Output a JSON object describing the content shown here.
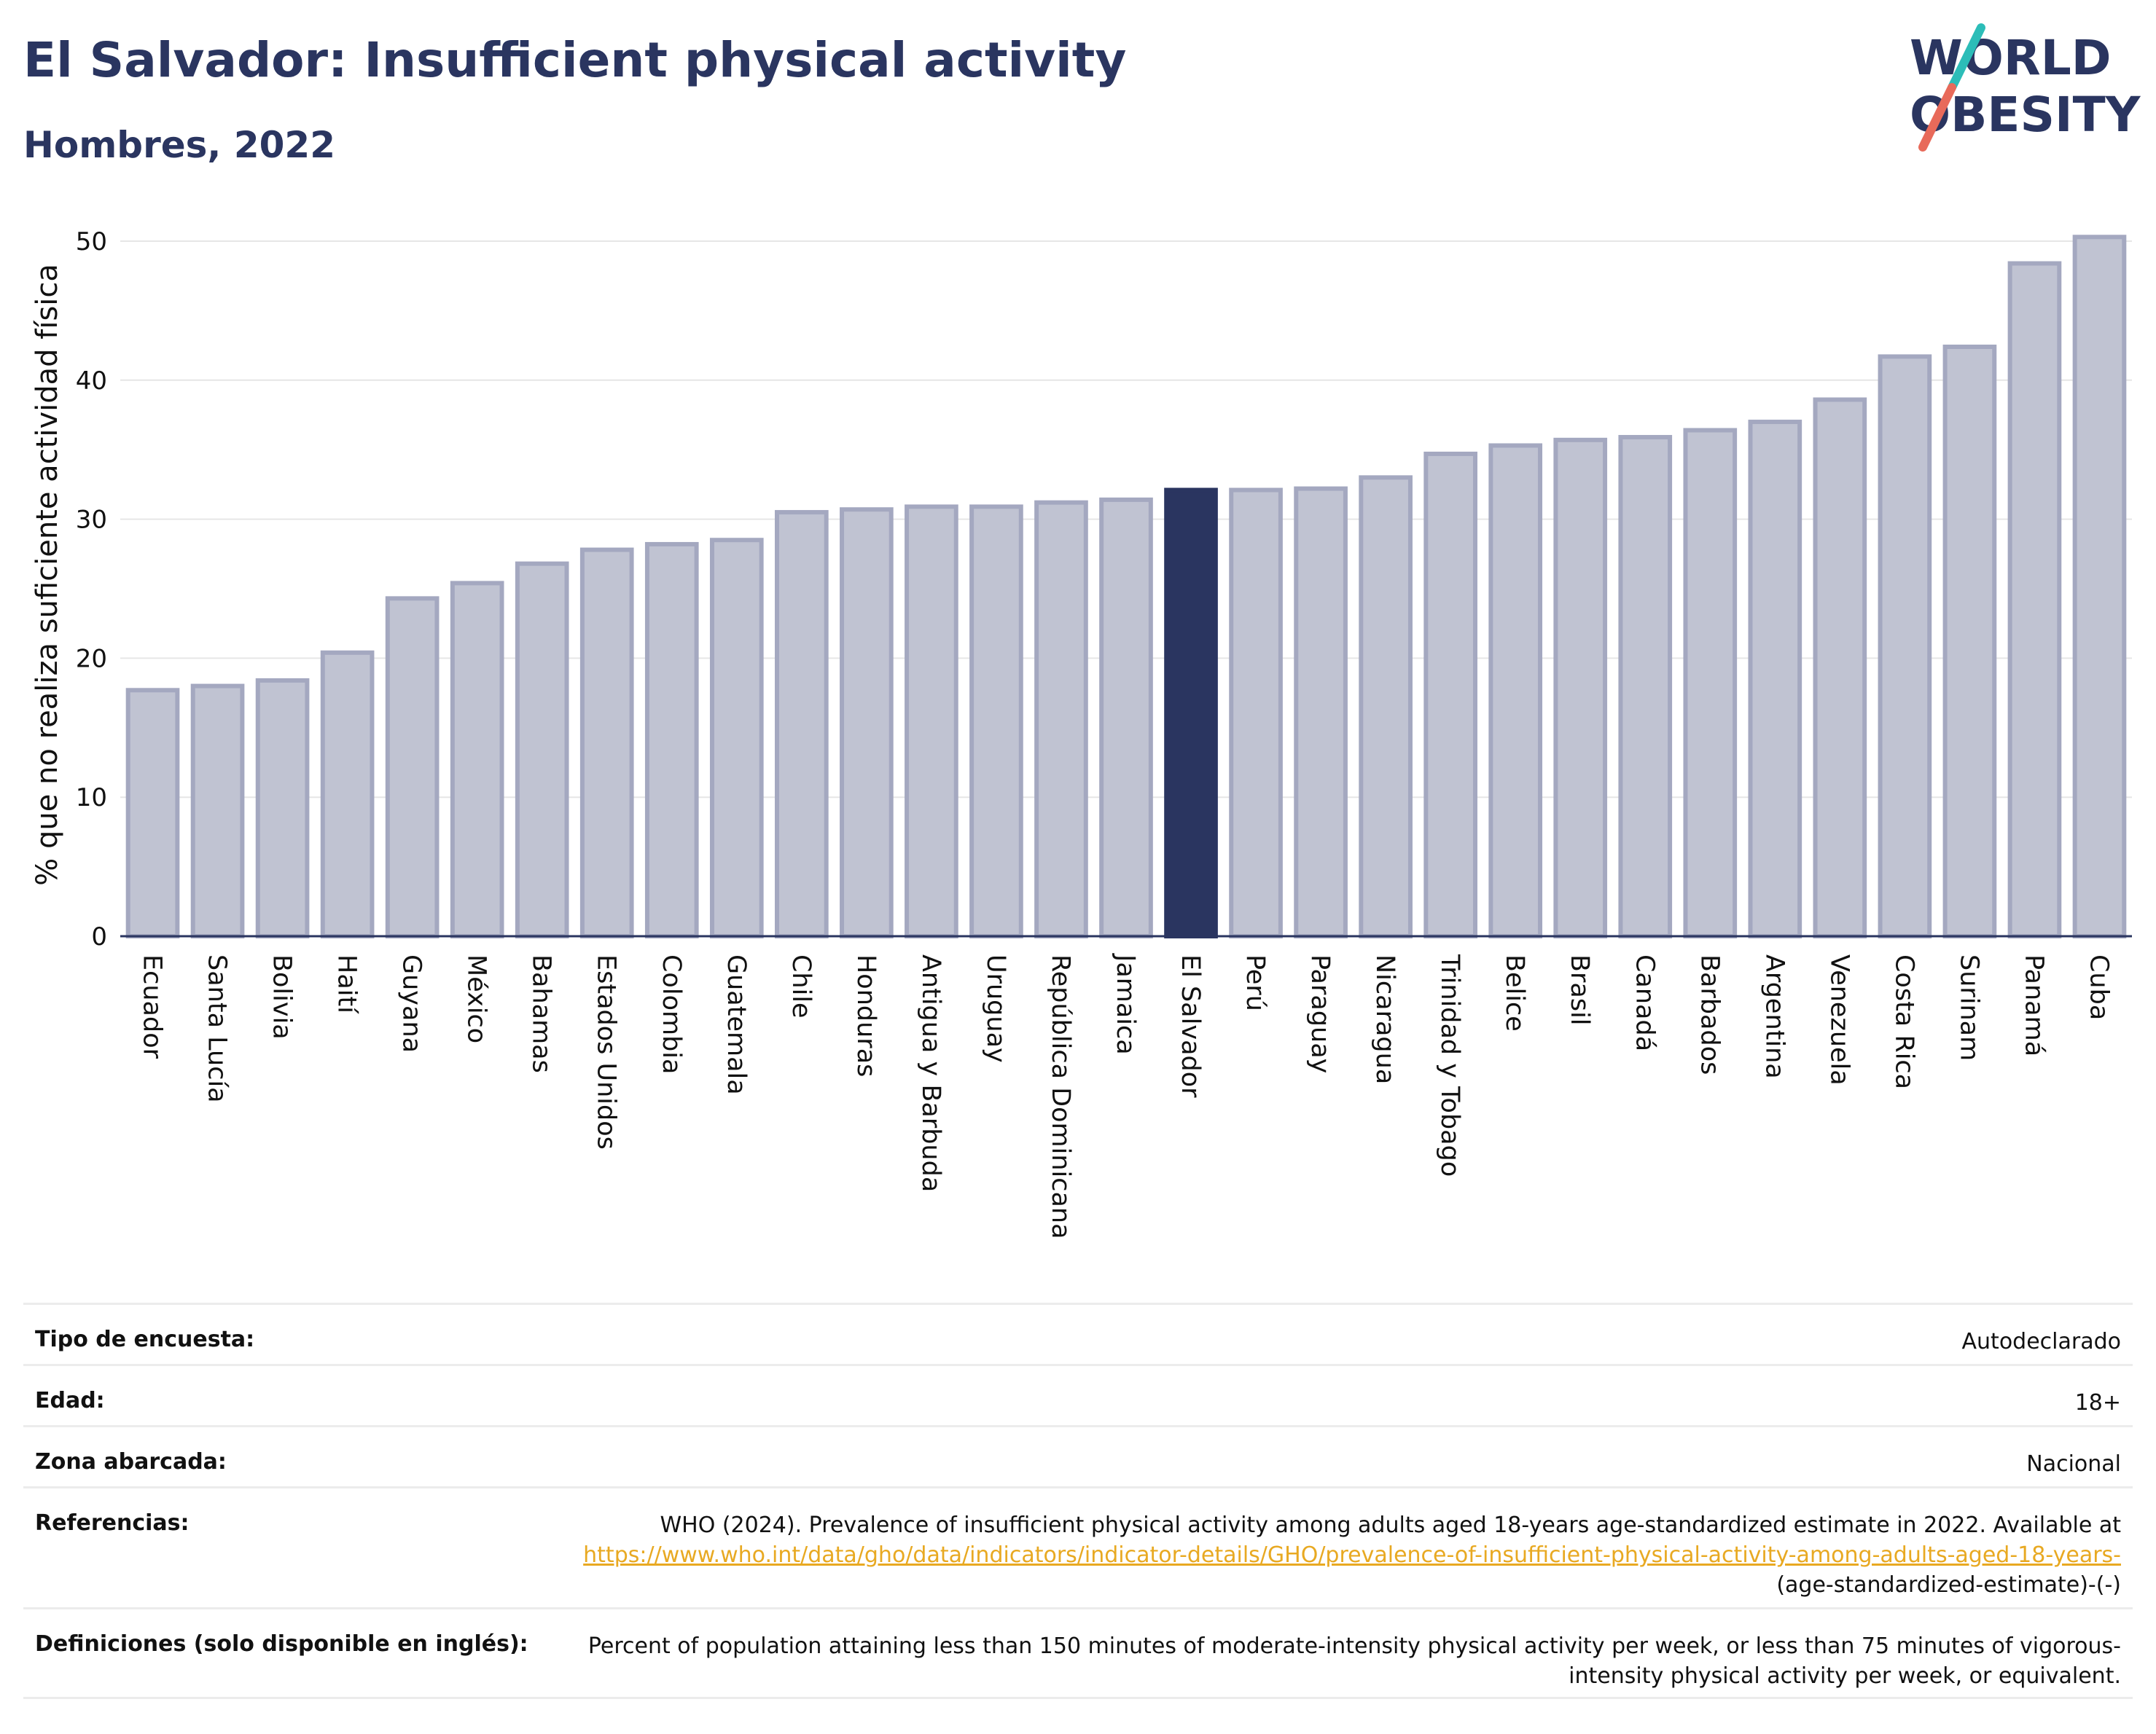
{
  "header": {
    "title": "El Salvador: Insufficient physical activity",
    "subtitle": "Hombres, 2022"
  },
  "logo": {
    "line1": "WORLD",
    "line2": "OBESITY",
    "slash_top": "#2cbdb8",
    "slash_bottom": "#e86a5a"
  },
  "colors": {
    "bar": "#c0c3d2",
    "bar_edge": "#a4a8c0",
    "highlight": "#2a3560",
    "grid": "#e6e6e6"
  },
  "chart_data": {
    "type": "bar",
    "title": "El Salvador: Insufficient physical activity",
    "subtitle": "Hombres, 2022",
    "xlabel": "",
    "ylabel": "% que no realiza suficiente actividad física",
    "ylim": [
      0,
      52
    ],
    "yticks": [
      0,
      10,
      20,
      30,
      40,
      50
    ],
    "grid": true,
    "highlight": "El Salvador",
    "categories": [
      "Ecuador",
      "Santa Lucía",
      "Bolivia",
      "Haití",
      "Guyana",
      "México",
      "Bahamas",
      "Estados Unidos",
      "Colombia",
      "Guatemala",
      "Chile",
      "Honduras",
      "Antigua y Barbuda",
      "Uruguay",
      "República Dominicana",
      "Jamaica",
      "El Salvador",
      "Perú",
      "Paraguay",
      "Nicaragua",
      "Trinidad y Tobago",
      "Belice",
      "Brasil",
      "Canadá",
      "Barbados",
      "Argentina",
      "Venezuela",
      "Costa Rica",
      "Surinam",
      "Panamá",
      "Cuba"
    ],
    "values": [
      17.7,
      18.0,
      18.4,
      20.4,
      24.3,
      25.4,
      26.8,
      27.8,
      28.2,
      28.5,
      30.5,
      30.7,
      30.9,
      30.9,
      31.2,
      31.4,
      32.1,
      32.1,
      32.2,
      33.0,
      34.7,
      35.3,
      35.7,
      35.9,
      36.4,
      37.0,
      38.6,
      41.7,
      42.4,
      48.4,
      50.3
    ]
  },
  "metadata": [
    {
      "label": "Tipo de encuesta:",
      "value": "Autodeclarado"
    },
    {
      "label": "Edad:",
      "value": "18+"
    },
    {
      "label": "Zona abarcada:",
      "value": "Nacional"
    },
    {
      "label": "Referencias:",
      "value_pre": "WHO (2024). Prevalence of insufficient physical activity among adults aged 18-years age-standardized estimate in 2022. Available at ",
      "link": "https://www.who.int/data/gho/data/indicators/indicator-details/GHO/prevalence-of-insufficient-physical-activity-among-adults-aged-18-years-",
      "value_post": "(age-standardized-estimate)-(-)"
    },
    {
      "label": "Definiciones (solo disponible en inglés):",
      "value": "Percent of population attaining less than 150 minutes of moderate-intensity physical activity per week, or less than 75 minutes of vigorous-intensity physical activity per week, or equivalent."
    }
  ]
}
